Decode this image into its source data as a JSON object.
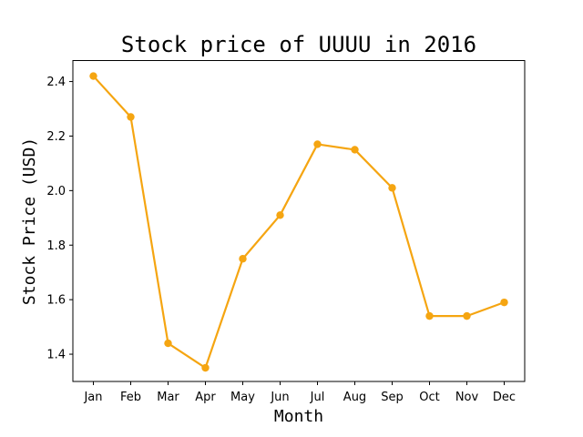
{
  "chart_data": {
    "type": "line",
    "title": "Stock price of UUUU in 2016",
    "xlabel": "Month",
    "ylabel": "Stock Price (USD)",
    "categories": [
      "Jan",
      "Feb",
      "Mar",
      "Apr",
      "May",
      "Jun",
      "Jul",
      "Aug",
      "Sep",
      "Oct",
      "Nov",
      "Dec"
    ],
    "series": [
      {
        "values": [
          2.42,
          2.27,
          1.44,
          1.35,
          1.75,
          1.91,
          2.17,
          2.15,
          2.01,
          1.54,
          1.54,
          1.59
        ]
      }
    ],
    "yticks": [
      "1.4",
      "1.6",
      "1.8",
      "2.0",
      "2.2",
      "2.4"
    ],
    "ylim": [
      1.3,
      2.477
    ],
    "grid": false,
    "line_color": "#f5a511",
    "marker": "circle"
  }
}
